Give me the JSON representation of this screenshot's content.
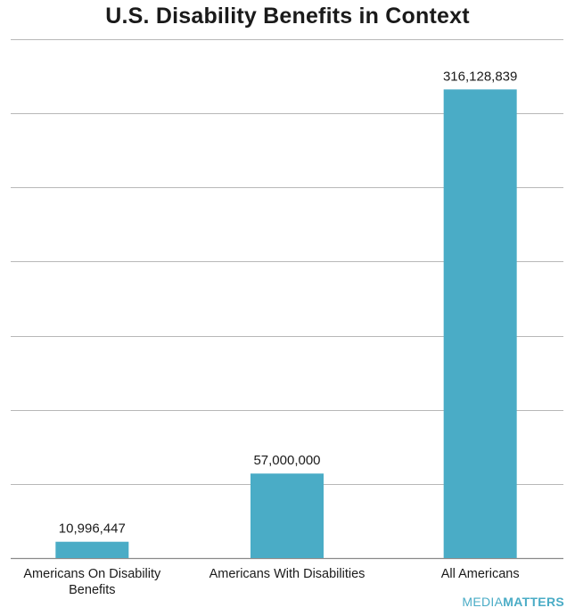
{
  "chart_data": {
    "type": "bar",
    "title": "U.S. Disability Benefits in Context",
    "xlabel": "",
    "ylabel": "",
    "categories": [
      "Americans On Disability Benefits",
      "Americans With Disabilities",
      "All Americans"
    ],
    "category_lines": [
      [
        "Americans On Disability",
        "Benefits"
      ],
      [
        "Americans With Disabilities"
      ],
      [
        "All Americans"
      ]
    ],
    "values": [
      10996447,
      57000000,
      316128839
    ],
    "value_labels": [
      "10,996,447",
      "57,000,000",
      "316,128,839"
    ],
    "ylim": [
      0,
      350000000
    ],
    "ytick_step": 50000000,
    "grid": true,
    "bar_color": "#4aacc6"
  },
  "brand": {
    "name_light": "MEDIA",
    "name_bold": "MATTERS",
    "color": "#4aacc6"
  }
}
